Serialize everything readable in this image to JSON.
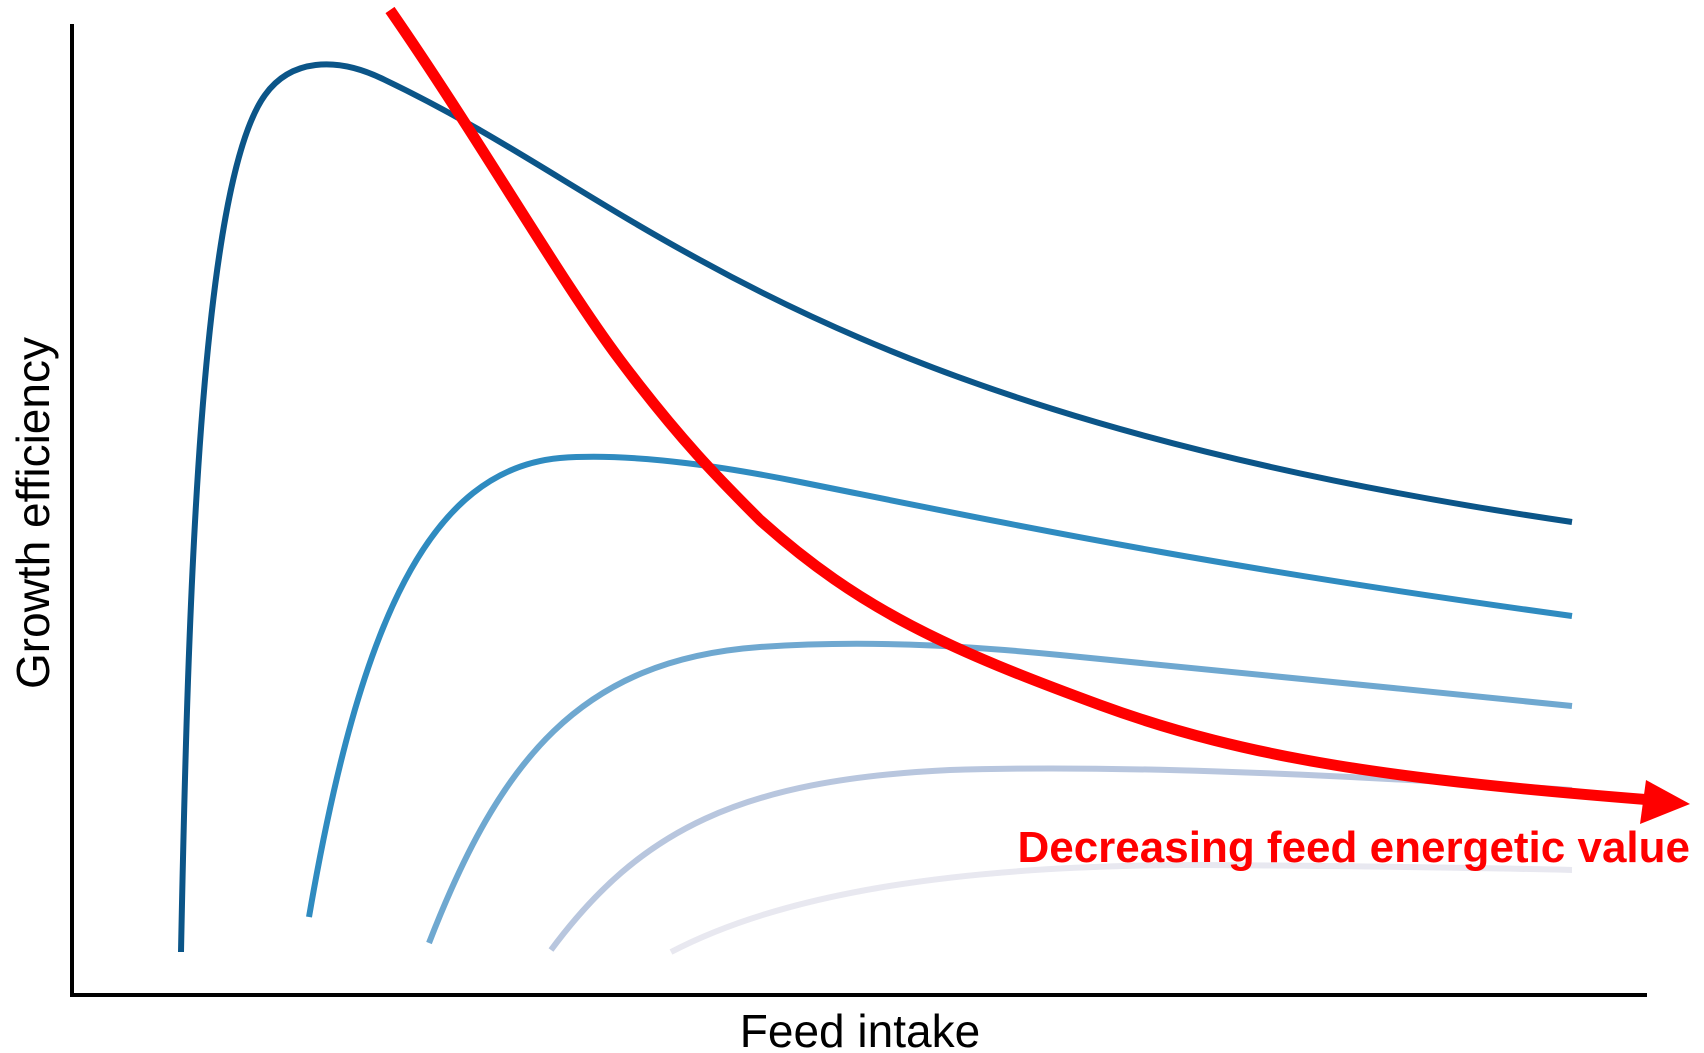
{
  "x_axis_label": "Feed intake",
  "y_axis_label": "Growth efficiency",
  "annotation_label": "Decreasing feed energetic value",
  "annotation_color": "#ff0000",
  "curve_colors": [
    "#0b5588",
    "#2f8bc0",
    "#6fa8d0",
    "#b8c6de",
    "#e8e8f0"
  ]
}
